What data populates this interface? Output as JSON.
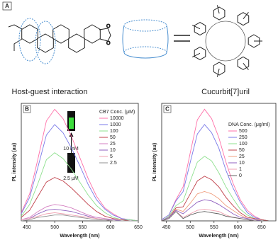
{
  "panel_a": {
    "panel_label": "A",
    "host_guest": "Host-guest interaction",
    "host_name": "Cucurbit[7]uril"
  },
  "chart_data": [
    {
      "type": "line",
      "panel_label": "B",
      "xlabel": "Wavelength (nm)",
      "ylabel": "PL intensity (au)",
      "legend_title": "CB7 Conc. (μM)",
      "inset_labels": [
        "10 mM",
        "2.5 μM"
      ],
      "x": [
        440,
        455,
        470,
        485,
        500,
        515,
        530,
        545,
        560,
        575,
        590,
        605,
        620,
        635,
        650
      ],
      "xlim": [
        440,
        650
      ],
      "xticks": [
        450,
        500,
        550,
        600,
        650
      ],
      "ylim": [
        0,
        100
      ],
      "series": [
        {
          "name": "10000",
          "color": "#ff6fa8",
          "values": [
            7,
            23,
            53,
            85,
            95,
            87,
            72,
            54,
            36,
            21,
            11,
            6,
            2,
            1,
            0
          ]
        },
        {
          "name": "1000",
          "color": "#7a7ae8",
          "values": [
            6,
            20,
            46,
            73,
            82,
            75,
            62,
            47,
            31,
            18,
            10,
            5,
            2,
            1,
            0
          ]
        },
        {
          "name": "100",
          "color": "#8ee08e",
          "values": [
            4,
            14,
            32,
            52,
            58,
            53,
            44,
            33,
            22,
            13,
            7,
            3,
            1,
            1,
            0
          ]
        },
        {
          "name": "50",
          "color": "#c0404a",
          "values": [
            3,
            9,
            21,
            33,
            37,
            34,
            28,
            21,
            14,
            8,
            4,
            2,
            1,
            0,
            0
          ]
        },
        {
          "name": "25",
          "color": "#d47fc0",
          "values": [
            1,
            3,
            8,
            12,
            14,
            13,
            11,
            8,
            5,
            3,
            2,
            1,
            0,
            0,
            0
          ]
        },
        {
          "name": "10",
          "color": "#8f5fbf",
          "values": [
            1,
            2,
            6,
            9,
            10,
            9,
            8,
            6,
            4,
            2,
            1,
            1,
            0,
            0,
            0
          ]
        },
        {
          "name": "5",
          "color": "#f0a0b0",
          "values": [
            1,
            2,
            4,
            6,
            7,
            6,
            5,
            4,
            3,
            2,
            1,
            0,
            0,
            0,
            0
          ]
        },
        {
          "name": "2.5",
          "color": "#909090",
          "values": [
            0,
            1,
            3,
            4,
            5,
            5,
            4,
            3,
            2,
            1,
            1,
            0,
            0,
            0,
            0
          ]
        }
      ]
    },
    {
      "type": "line",
      "panel_label": "C",
      "xlabel": "Wavelength (nm)",
      "ylabel": "PL intensity (au)",
      "legend_title": "DNA Conc. (μg/ml)",
      "x": [
        440,
        455,
        470,
        485,
        500,
        515,
        530,
        545,
        560,
        575,
        590,
        605,
        620,
        635,
        650,
        665,
        680
      ],
      "xlim": [
        440,
        680
      ],
      "xticks": [
        450,
        500,
        550,
        600,
        650
      ],
      "ylim": [
        0,
        100
      ],
      "series": [
        {
          "name": "500",
          "color": "#ff6fa8",
          "values": [
            1,
            5,
            18,
            29,
            58,
            86,
            95,
            87,
            71,
            50,
            32,
            18,
            9,
            4,
            1,
            0,
            0
          ]
        },
        {
          "name": "250",
          "color": "#7a7ae8",
          "values": [
            1,
            5,
            17,
            25,
            50,
            74,
            82,
            75,
            62,
            43,
            28,
            16,
            7,
            3,
            1,
            0,
            0
          ]
        },
        {
          "name": "100",
          "color": "#8ee08e",
          "values": [
            0,
            4,
            13,
            17,
            34,
            50,
            55,
            51,
            41,
            29,
            19,
            10,
            5,
            2,
            1,
            0,
            0
          ]
        },
        {
          "name": "50",
          "color": "#c0404a",
          "values": [
            0,
            3,
            11,
            12,
            23,
            34,
            38,
            35,
            29,
            20,
            13,
            7,
            3,
            2,
            1,
            0,
            0
          ]
        },
        {
          "name": "25",
          "color": "#f0a080",
          "values": [
            0,
            3,
            10,
            8,
            15,
            23,
            25,
            23,
            19,
            13,
            9,
            5,
            2,
            1,
            0,
            0,
            0
          ]
        },
        {
          "name": "10",
          "color": "#8f5fbf",
          "values": [
            0,
            3,
            9,
            6,
            11,
            16,
            18,
            17,
            14,
            10,
            6,
            3,
            2,
            1,
            0,
            0,
            0
          ]
        },
        {
          "name": "1",
          "color": "#f0a0b0",
          "values": [
            0,
            2,
            8,
            3,
            6,
            9,
            10,
            9,
            8,
            5,
            3,
            2,
            1,
            0,
            0,
            0,
            0
          ]
        },
        {
          "name": "0",
          "color": "#606060",
          "values": [
            0,
            2,
            8,
            2,
            5,
            7,
            8,
            7,
            6,
            4,
            3,
            2,
            1,
            0,
            0,
            0,
            0
          ]
        }
      ]
    }
  ]
}
